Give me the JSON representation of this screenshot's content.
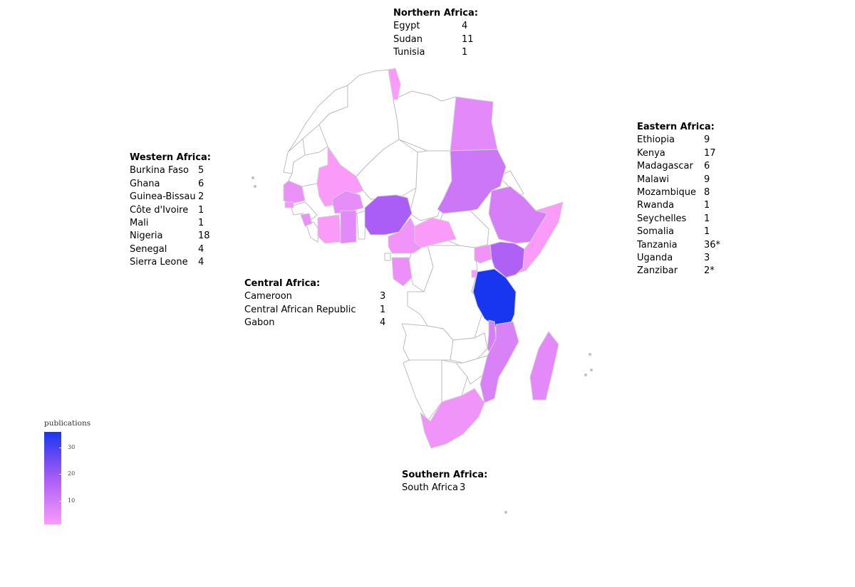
{
  "legend": {
    "title": "publications",
    "ticks": [
      "10",
      "20",
      "30"
    ],
    "tick_values": [
      10,
      20,
      30
    ],
    "min": 1,
    "max": 36,
    "color_low": "#fa9bfa",
    "color_mid": "#a85cf5",
    "color_high": "#1836f0"
  },
  "regions": {
    "northern": {
      "heading": "Northern Africa:",
      "rows": [
        {
          "country": "Egypt",
          "count": "4"
        },
        {
          "country": "Sudan",
          "count": "11"
        },
        {
          "country": "Tunisia",
          "count": "1"
        }
      ]
    },
    "western": {
      "heading": "Western Africa:",
      "rows": [
        {
          "country": "Burkina Faso",
          "count": "5"
        },
        {
          "country": "Ghana",
          "count": "6"
        },
        {
          "country": "Guinea-Bissau",
          "count": "2"
        },
        {
          "country": "Côte d'Ivoire",
          "count": "1"
        },
        {
          "country": "Mali",
          "count": "1"
        },
        {
          "country": "Nigeria",
          "count": "18"
        },
        {
          "country": "Senegal",
          "count": "4"
        },
        {
          "country": "Sierra Leone",
          "count": "4"
        }
      ]
    },
    "central": {
      "heading": "Central Africa:",
      "rows": [
        {
          "country": "Cameroon",
          "count": "3"
        },
        {
          "country": "Central African Republic",
          "count": "1"
        },
        {
          "country": "Gabon",
          "count": "4"
        }
      ]
    },
    "eastern": {
      "heading": "Eastern Africa:",
      "rows": [
        {
          "country": "Ethiopia",
          "count": "9"
        },
        {
          "country": "Kenya",
          "count": "17"
        },
        {
          "country": "Madagascar",
          "count": "6"
        },
        {
          "country": "Malawi",
          "count": "9"
        },
        {
          "country": "Mozambique",
          "count": "8"
        },
        {
          "country": "Rwanda",
          "count": "1"
        },
        {
          "country": "Seychelles",
          "count": "1"
        },
        {
          "country": "Somalia",
          "count": "1"
        },
        {
          "country": "Tanzania",
          "count": "36*"
        },
        {
          "country": "Uganda",
          "count": "3"
        },
        {
          "country": "Zanzibar",
          "count": "2*"
        }
      ]
    },
    "southern": {
      "heading": "Southern Africa:",
      "rows": [
        {
          "country": "South Africa",
          "count": "3"
        }
      ]
    }
  }
}
